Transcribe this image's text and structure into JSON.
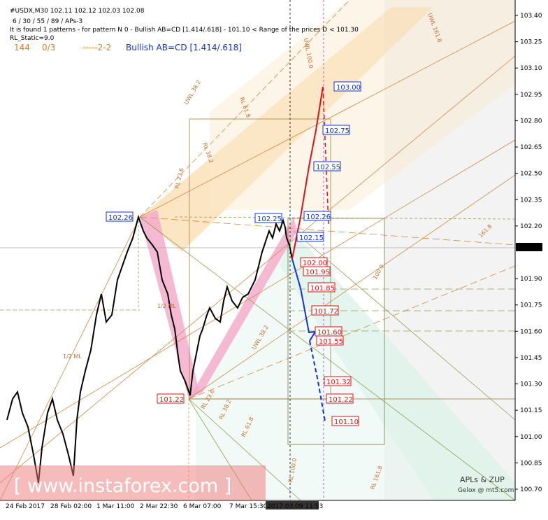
{
  "header": {
    "symbol_line": "#USDX,M30  102.11 102.12 102.03 102.08",
    "params": "6 / 30 / 55 / 89 / APs-3",
    "pattern_info": "It is found 1 patterns  -  for pattern N 0 - Bullish AB=CD [1.414/.618] - 101.10 < Range of the prices D < 101.30",
    "static": "RL_Static=9.0",
    "count": "144",
    "ratio": "0/3",
    "code": "-----2-2",
    "pattern_name": "Bullish AB=CD [1.414/.618]"
  },
  "price_axis": {
    "ticks": [
      {
        "value": 103.4,
        "label": "103.40"
      },
      {
        "value": 103.25,
        "label": "103.25"
      },
      {
        "value": 103.1,
        "label": "103.10"
      },
      {
        "value": 102.95,
        "label": "102.95"
      },
      {
        "value": 102.8,
        "label": "102.80"
      },
      {
        "value": 102.65,
        "label": "102.65"
      },
      {
        "value": 102.5,
        "label": "102.50"
      },
      {
        "value": 102.35,
        "label": "102.35"
      },
      {
        "value": 102.2,
        "label": "102.20"
      },
      {
        "value": 101.9,
        "label": "101.90"
      },
      {
        "value": 101.75,
        "label": "101.75"
      },
      {
        "value": 101.6,
        "label": "101.60"
      },
      {
        "value": 101.45,
        "label": "101.45"
      },
      {
        "value": 101.3,
        "label": "101.30"
      },
      {
        "value": 101.15,
        "label": "101.15"
      },
      {
        "value": 101.0,
        "label": "101.00"
      },
      {
        "value": 100.85,
        "label": "100.85"
      },
      {
        "value": 100.7,
        "label": "100.70"
      }
    ],
    "current": {
      "value": 102.08,
      "label": "102.08"
    }
  },
  "time_axis": [
    "24 Feb 2017",
    "28 Feb 02:00",
    "1 Mar 11:00",
    "2 Mar 22:30",
    "6 Mar 07:00",
    "7 Mar 15:30",
    "2017.03.09 11:53"
  ],
  "levels": [
    "103.00",
    "102.75",
    "102.55",
    "102.26",
    "102.26",
    "102.25",
    "102.15",
    "102.00",
    "101.95",
    "101.85",
    "101.72",
    "101.60",
    "101.55",
    "101.32",
    "101.22",
    "101.22",
    "101.10"
  ],
  "line_labels": [
    "UWL 38.2",
    "RL 61.8",
    "RL 38.2",
    "RL 23.6",
    "1/2 ML",
    "1/2 ML",
    "UWL 161.8",
    "UWL 100.0",
    "UWL 38.2",
    "RL 38.2",
    "RL 61.8",
    "RL 23.6",
    "RL 100.0",
    "RL 161.8",
    "100.0",
    "161.8"
  ],
  "watermark": "[ www.instaforex.com ]",
  "credits": [
    "APLs & ZUP",
    "Gelox @ mt5.com"
  ]
}
